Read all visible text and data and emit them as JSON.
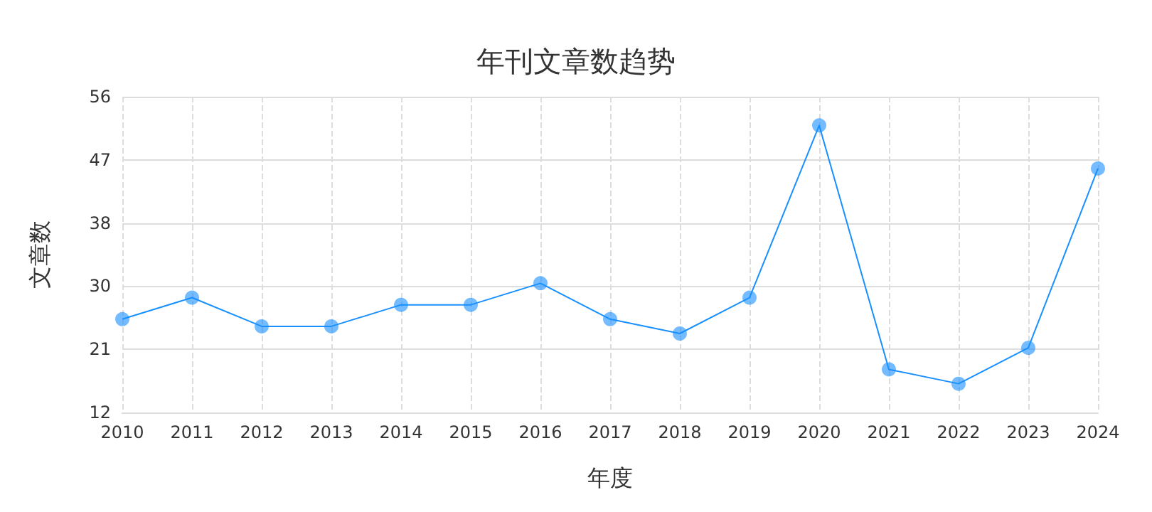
{
  "chart_data": {
    "type": "line",
    "title": "年刊文章数趋势",
    "xlabel": "年度",
    "ylabel": "文章数",
    "categories": [
      "2010",
      "2011",
      "2012",
      "2013",
      "2014",
      "2015",
      "2016",
      "2017",
      "2018",
      "2019",
      "2020",
      "2021",
      "2022",
      "2023",
      "2024"
    ],
    "series": [
      {
        "color": "#1890ff",
        "values": [
          25,
          28,
          24,
          24,
          27,
          27,
          30,
          25,
          23,
          28,
          52,
          18,
          16,
          21,
          46
        ]
      }
    ],
    "ylim": [
      12,
      56
    ],
    "yticks": [
      12,
      {
        "value": 20.8,
        "label": "21"
      },
      {
        "value": 29.6,
        "label": "30"
      },
      {
        "value": 38.4,
        "label": "38"
      },
      {
        "value": 47.2,
        "label": "47"
      },
      56
    ],
    "grid": true,
    "marker": "circle",
    "line_style": "solid"
  }
}
